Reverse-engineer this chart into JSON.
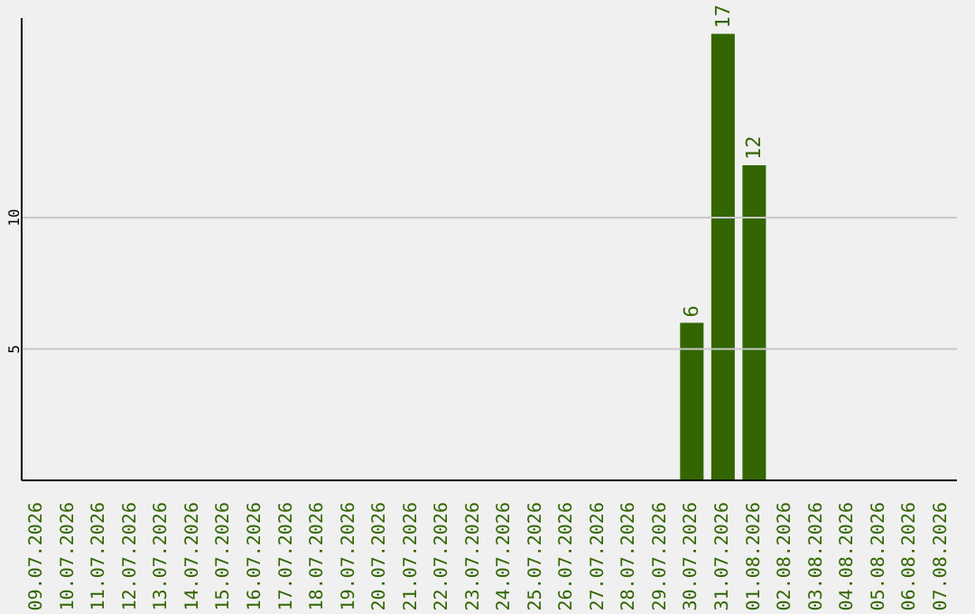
{
  "chart_data": {
    "type": "bar",
    "categories": [
      "09.07.2026",
      "10.07.2026",
      "11.07.2026",
      "12.07.2026",
      "13.07.2026",
      "14.07.2026",
      "15.07.2026",
      "16.07.2026",
      "17.07.2026",
      "18.07.2026",
      "19.07.2026",
      "20.07.2026",
      "21.07.2026",
      "22.07.2026",
      "23.07.2026",
      "24.07.2026",
      "25.07.2026",
      "26.07.2026",
      "27.07.2026",
      "28.07.2026",
      "29.07.2026",
      "30.07.2026",
      "31.07.2026",
      "01.08.2026",
      "02.08.2026",
      "03.08.2026",
      "04.08.2026",
      "05.08.2026",
      "06.08.2026",
      "07.08.2026"
    ],
    "values": [
      0,
      0,
      0,
      0,
      0,
      0,
      0,
      0,
      0,
      0,
      0,
      0,
      0,
      0,
      0,
      0,
      0,
      0,
      0,
      0,
      0,
      6,
      17,
      12,
      0,
      0,
      0,
      0,
      0,
      0
    ],
    "value_labels": [
      null,
      null,
      null,
      null,
      null,
      null,
      null,
      null,
      null,
      null,
      null,
      null,
      null,
      null,
      null,
      null,
      null,
      null,
      null,
      null,
      null,
      "6",
      "17",
      "12",
      null,
      null,
      null,
      null,
      null,
      null
    ],
    "color": "#336600",
    "ylim": [
      0,
      17.6
    ],
    "yticks": [
      5,
      10
    ],
    "grid": "y"
  }
}
